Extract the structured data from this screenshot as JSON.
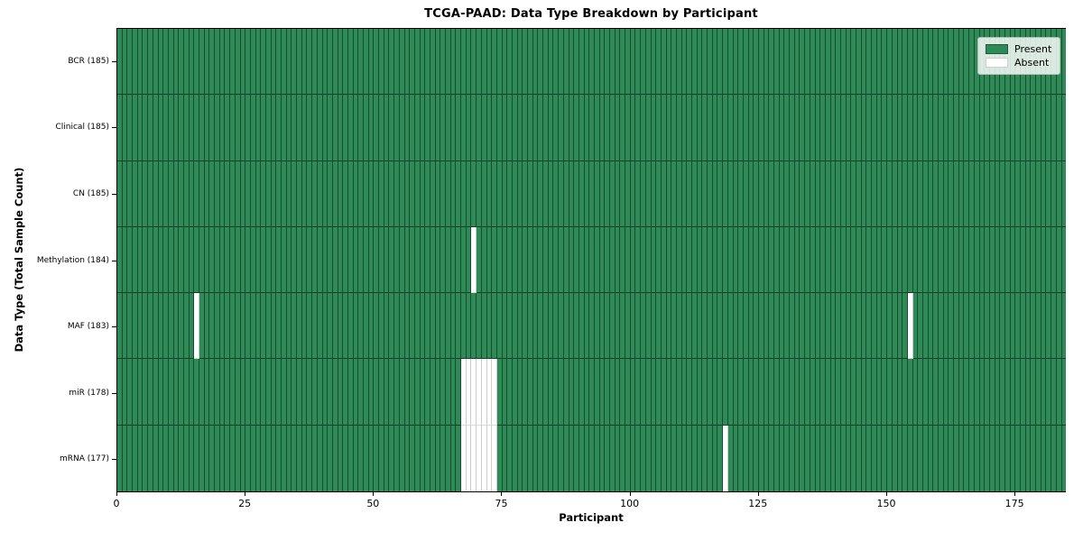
{
  "chart_data": {
    "type": "heatmap",
    "title": "TCGA-PAAD: Data Type Breakdown by Participant",
    "xlabel": "Participant",
    "ylabel": "Data Type (Total Sample Count)",
    "n_participants": 185,
    "x_ticks": [
      0,
      25,
      50,
      75,
      100,
      125,
      150,
      175
    ],
    "colors": {
      "present": "#2E8B57",
      "absent": "#FFFFFF"
    },
    "legend": [
      {
        "label": "Present",
        "state": "present"
      },
      {
        "label": "Absent",
        "state": "absent"
      }
    ],
    "legend_position": "upper right",
    "grid": false,
    "rows": [
      {
        "label": "BCR (185)",
        "data_type": "BCR",
        "total": 185,
        "absent_participants": []
      },
      {
        "label": "Clinical (185)",
        "data_type": "Clinical",
        "total": 185,
        "absent_participants": []
      },
      {
        "label": "CN (185)",
        "data_type": "CN",
        "total": 185,
        "absent_participants": []
      },
      {
        "label": "Methylation (184)",
        "data_type": "Methylation",
        "total": 184,
        "absent_participants": [
          69
        ]
      },
      {
        "label": "MAF (183)",
        "data_type": "MAF",
        "total": 183,
        "absent_participants": [
          15,
          154
        ]
      },
      {
        "label": "miR (178)",
        "data_type": "miR",
        "total": 178,
        "absent_participants": [
          67,
          68,
          69,
          70,
          71,
          72,
          73
        ]
      },
      {
        "label": "mRNA (177)",
        "data_type": "mRNA",
        "total": 177,
        "absent_participants": [
          67,
          68,
          69,
          70,
          71,
          72,
          73,
          118
        ]
      }
    ]
  }
}
